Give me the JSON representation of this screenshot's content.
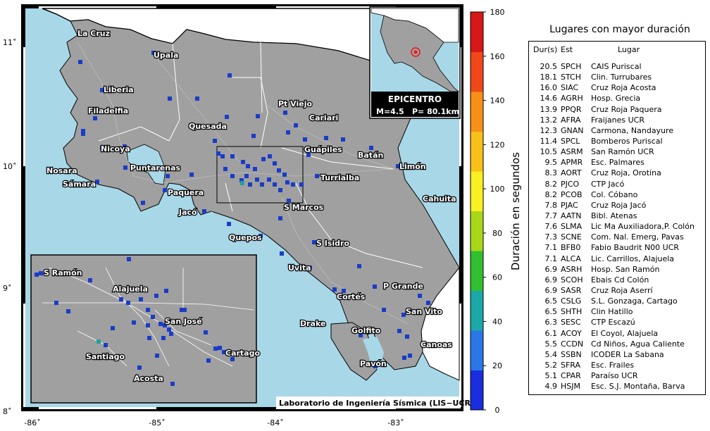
{
  "map": {
    "x_ticks": [
      "-86˚",
      "-85˚",
      "-84˚",
      "-83˚"
    ],
    "y_ticks": [
      "11˚",
      "10˚",
      "9˚",
      "8˚"
    ],
    "cities": [
      {
        "name": "La Cruz"
      },
      {
        "name": "Upala"
      },
      {
        "name": "Liberia"
      },
      {
        "name": "Filadelfia"
      },
      {
        "name": "Pt Viejo"
      },
      {
        "name": "Quesada"
      },
      {
        "name": "Cariari"
      },
      {
        "name": "Nicoya"
      },
      {
        "name": "Guápiles"
      },
      {
        "name": "Batán"
      },
      {
        "name": "Limón"
      },
      {
        "name": "Nosara"
      },
      {
        "name": "Puntarenas"
      },
      {
        "name": "Turrialba"
      },
      {
        "name": "Sámara"
      },
      {
        "name": "Paquera"
      },
      {
        "name": "Cahuita"
      },
      {
        "name": "Jacó"
      },
      {
        "name": "S Marcos"
      },
      {
        "name": "Quepos"
      },
      {
        "name": "S Isidro"
      },
      {
        "name": "Uvita"
      },
      {
        "name": "P Grande"
      },
      {
        "name": "Cortés"
      },
      {
        "name": "San Vito"
      },
      {
        "name": "Drake"
      },
      {
        "name": "Golfito"
      },
      {
        "name": "Canoas"
      },
      {
        "name": "Pavón"
      }
    ],
    "inset_cities": [
      {
        "name": "S Ramón"
      },
      {
        "name": "Alajuela"
      },
      {
        "name": "San José"
      },
      {
        "name": "Santiago"
      },
      {
        "name": "Cartago"
      },
      {
        "name": "Acosta"
      }
    ],
    "credit": "Laboratorio de Ingeniería Sísmica (LIS−UCR)",
    "colors": {
      "sea": "#a8d8e8",
      "land": "#a0a0a0",
      "station": "#1a3cc8",
      "epicenter_station": "#20a0a0",
      "epicenter_marker": "#e8141e"
    }
  },
  "epicenter": {
    "title": "EPICENTRO",
    "magnitude": "M=4.5",
    "depth": "P= 80.1km"
  },
  "colorbar": {
    "title": "Duración en segundos",
    "ticks": [
      "0",
      "20",
      "40",
      "60",
      "80",
      "100",
      "120",
      "140",
      "160",
      "180"
    ],
    "range": [
      0,
      180
    ],
    "colors": [
      "#1a2ee0",
      "#2a78e8",
      "#1aa8a8",
      "#30c030",
      "#a8d818",
      "#f8f020",
      "#f8c018",
      "#f89018",
      "#f04818",
      "#d81818"
    ]
  },
  "table": {
    "title": "Lugares con mayor duración",
    "headers": {
      "dur": "Dur(s)",
      "est": "Est",
      "lugar": "Lugar"
    },
    "rows": [
      {
        "dur": "20.5",
        "est": "SPCH",
        "lugar": "CAIS Puriscal"
      },
      {
        "dur": "18.1",
        "est": "STCH",
        "lugar": "Clin. Turrubares"
      },
      {
        "dur": "16.0",
        "est": "SIAC",
        "lugar": "Cruz Roja Acosta"
      },
      {
        "dur": "14.6",
        "est": "AGRH",
        "lugar": "Hosp. Grecia"
      },
      {
        "dur": "13.9",
        "est": "PPQR",
        "lugar": "Cruz Roja Paquera"
      },
      {
        "dur": "13.2",
        "est": "AFRA",
        "lugar": "Fraijanes UCR"
      },
      {
        "dur": "12.3",
        "est": "GNAN",
        "lugar": "Carmona, Nandayure"
      },
      {
        "dur": "11.4",
        "est": "SPCL",
        "lugar": "Bomberos Puriscal"
      },
      {
        "dur": "10.5",
        "est": "ASRM",
        "lugar": "San Ramón UCR"
      },
      {
        "dur": "9.5",
        "est": "APMR",
        "lugar": "Esc. Palmares"
      },
      {
        "dur": "8.3",
        "est": "AORT",
        "lugar": "Cruz Roja, Orotina"
      },
      {
        "dur": "8.2",
        "est": "PJCO",
        "lugar": "CTP Jacó"
      },
      {
        "dur": "8.2",
        "est": "PCOB",
        "lugar": "Col. Cóbano"
      },
      {
        "dur": "7.8",
        "est": "PJAC",
        "lugar": "Cruz Roja Jacó"
      },
      {
        "dur": "7.7",
        "est": "AATN",
        "lugar": "Bibl. Atenas"
      },
      {
        "dur": "7.6",
        "est": "SLMA",
        "lugar": "Lic Ma Auxiliadora,P. Colón"
      },
      {
        "dur": "7.3",
        "est": "SCNE",
        "lugar": "Com. Nal. Emerg, Pavas"
      },
      {
        "dur": "7.1",
        "est": "BFB0",
        "lugar": "Fabio Baudrit N00 UCR"
      },
      {
        "dur": "7.1",
        "est": "ALCA",
        "lugar": "Lic. Carrillos, Alajuela"
      },
      {
        "dur": "6.9",
        "est": "ASRH",
        "lugar": "Hosp. San Ramón"
      },
      {
        "dur": "6.9",
        "est": "SCOH",
        "lugar": "Ebais Cd Colón"
      },
      {
        "dur": "6.9",
        "est": "SASR",
        "lugar": "Cruz Roja Aserrí"
      },
      {
        "dur": "6.5",
        "est": "CSLG",
        "lugar": "S.L. Gonzaga, Cartago"
      },
      {
        "dur": "6.5",
        "est": "SHTH",
        "lugar": "Clin Hatillo"
      },
      {
        "dur": "6.3",
        "est": "SESC",
        "lugar": "CTP Escazú"
      },
      {
        "dur": "6.1",
        "est": "ACOY",
        "lugar": "El Coyol, Alajuela"
      },
      {
        "dur": "5.5",
        "est": "CCDN",
        "lugar": "Cd Niños, Agua Caliente"
      },
      {
        "dur": "5.4",
        "est": "SSBN",
        "lugar": "ICODER La Sabana"
      },
      {
        "dur": "5.2",
        "est": "SFRA",
        "lugar": "Esc. Frailes"
      },
      {
        "dur": "5.1",
        "est": "CPAR",
        "lugar": "Paraíso UCR"
      },
      {
        "dur": "4.9",
        "est": "HSJM",
        "lugar": "Esc. S.J. Montaña, Barva"
      }
    ]
  }
}
